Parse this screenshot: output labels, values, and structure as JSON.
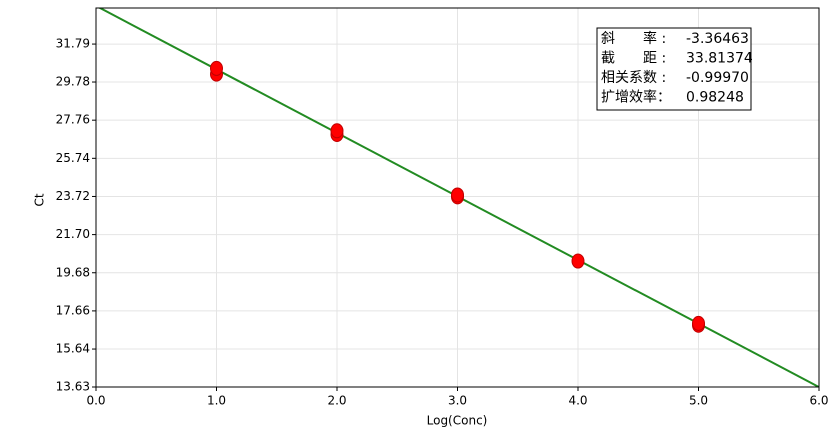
{
  "chart_data": {
    "type": "scatter",
    "x_label": "Log(Conc)",
    "y_label": "Ct",
    "xlim": [
      0,
      6
    ],
    "ylim": [
      13.63,
      33.7
    ],
    "xticks": [
      {
        "value": 0,
        "label": "0.0"
      },
      {
        "value": 1,
        "label": "1.0"
      },
      {
        "value": 2,
        "label": "2.0"
      },
      {
        "value": 3,
        "label": "3.0"
      },
      {
        "value": 4,
        "label": "4.0"
      },
      {
        "value": 5,
        "label": "5.0"
      },
      {
        "value": 6,
        "label": "6.0"
      }
    ],
    "yticks": [
      13.63,
      15.64,
      17.66,
      19.68,
      {
        "value": 21.7,
        "label": "21.70"
      },
      23.72,
      25.74,
      27.76,
      29.78,
      31.79
    ],
    "grid": true,
    "point_color": "#ff0000",
    "line_color": "#228b22",
    "x": [
      1,
      1,
      2,
      2,
      3,
      3,
      4,
      5,
      5
    ],
    "y": [
      30.2,
      30.5,
      27.0,
      27.2,
      23.7,
      23.8,
      20.3,
      16.9,
      17.0
    ],
    "stats": [
      {
        "name": "斜　　率 :",
        "value": -3.36463,
        "value_label": "-3.36463"
      },
      {
        "name": "截　　距 :",
        "value": 33.81374,
        "value_label": "33.81374"
      },
      {
        "name": "相关系数 :",
        "value": -0.9997,
        "value_label": "-0.99970"
      },
      {
        "name": "扩增效率：",
        "value": 0.98248,
        "value_label": "0.98248"
      }
    ]
  }
}
